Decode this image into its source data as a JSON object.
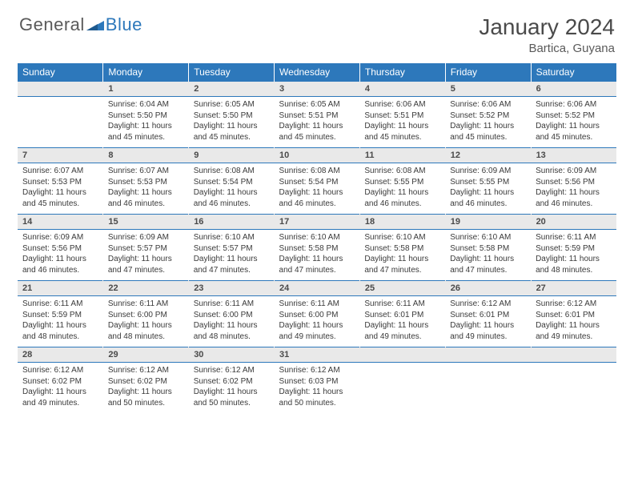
{
  "brand": {
    "general": "General",
    "blue": "Blue"
  },
  "title": "January 2024",
  "location": "Bartica, Guyana",
  "colors": {
    "header_bg": "#2d78bb",
    "header_text": "#ffffff",
    "date_bg": "#e9e9e9",
    "cell_text": "#3a3a3a",
    "title_text": "#4a4a4a",
    "logo_gray": "#5a5a5a",
    "logo_blue": "#2d78bb"
  },
  "typography": {
    "title_fontsize": 28,
    "location_fontsize": 15,
    "header_fontsize": 12,
    "date_fontsize": 11,
    "cell_fontsize": 10
  },
  "day_names": [
    "Sunday",
    "Monday",
    "Tuesday",
    "Wednesday",
    "Thursday",
    "Friday",
    "Saturday"
  ],
  "weeks": [
    {
      "dates": [
        "",
        "1",
        "2",
        "3",
        "4",
        "5",
        "6"
      ],
      "cells": [
        null,
        {
          "sunrise": "Sunrise: 6:04 AM",
          "sunset": "Sunset: 5:50 PM",
          "day1": "Daylight: 11 hours",
          "day2": "and 45 minutes."
        },
        {
          "sunrise": "Sunrise: 6:05 AM",
          "sunset": "Sunset: 5:50 PM",
          "day1": "Daylight: 11 hours",
          "day2": "and 45 minutes."
        },
        {
          "sunrise": "Sunrise: 6:05 AM",
          "sunset": "Sunset: 5:51 PM",
          "day1": "Daylight: 11 hours",
          "day2": "and 45 minutes."
        },
        {
          "sunrise": "Sunrise: 6:06 AM",
          "sunset": "Sunset: 5:51 PM",
          "day1": "Daylight: 11 hours",
          "day2": "and 45 minutes."
        },
        {
          "sunrise": "Sunrise: 6:06 AM",
          "sunset": "Sunset: 5:52 PM",
          "day1": "Daylight: 11 hours",
          "day2": "and 45 minutes."
        },
        {
          "sunrise": "Sunrise: 6:06 AM",
          "sunset": "Sunset: 5:52 PM",
          "day1": "Daylight: 11 hours",
          "day2": "and 45 minutes."
        }
      ]
    },
    {
      "dates": [
        "7",
        "8",
        "9",
        "10",
        "11",
        "12",
        "13"
      ],
      "cells": [
        {
          "sunrise": "Sunrise: 6:07 AM",
          "sunset": "Sunset: 5:53 PM",
          "day1": "Daylight: 11 hours",
          "day2": "and 45 minutes."
        },
        {
          "sunrise": "Sunrise: 6:07 AM",
          "sunset": "Sunset: 5:53 PM",
          "day1": "Daylight: 11 hours",
          "day2": "and 46 minutes."
        },
        {
          "sunrise": "Sunrise: 6:08 AM",
          "sunset": "Sunset: 5:54 PM",
          "day1": "Daylight: 11 hours",
          "day2": "and 46 minutes."
        },
        {
          "sunrise": "Sunrise: 6:08 AM",
          "sunset": "Sunset: 5:54 PM",
          "day1": "Daylight: 11 hours",
          "day2": "and 46 minutes."
        },
        {
          "sunrise": "Sunrise: 6:08 AM",
          "sunset": "Sunset: 5:55 PM",
          "day1": "Daylight: 11 hours",
          "day2": "and 46 minutes."
        },
        {
          "sunrise": "Sunrise: 6:09 AM",
          "sunset": "Sunset: 5:55 PM",
          "day1": "Daylight: 11 hours",
          "day2": "and 46 minutes."
        },
        {
          "sunrise": "Sunrise: 6:09 AM",
          "sunset": "Sunset: 5:56 PM",
          "day1": "Daylight: 11 hours",
          "day2": "and 46 minutes."
        }
      ]
    },
    {
      "dates": [
        "14",
        "15",
        "16",
        "17",
        "18",
        "19",
        "20"
      ],
      "cells": [
        {
          "sunrise": "Sunrise: 6:09 AM",
          "sunset": "Sunset: 5:56 PM",
          "day1": "Daylight: 11 hours",
          "day2": "and 46 minutes."
        },
        {
          "sunrise": "Sunrise: 6:09 AM",
          "sunset": "Sunset: 5:57 PM",
          "day1": "Daylight: 11 hours",
          "day2": "and 47 minutes."
        },
        {
          "sunrise": "Sunrise: 6:10 AM",
          "sunset": "Sunset: 5:57 PM",
          "day1": "Daylight: 11 hours",
          "day2": "and 47 minutes."
        },
        {
          "sunrise": "Sunrise: 6:10 AM",
          "sunset": "Sunset: 5:58 PM",
          "day1": "Daylight: 11 hours",
          "day2": "and 47 minutes."
        },
        {
          "sunrise": "Sunrise: 6:10 AM",
          "sunset": "Sunset: 5:58 PM",
          "day1": "Daylight: 11 hours",
          "day2": "and 47 minutes."
        },
        {
          "sunrise": "Sunrise: 6:10 AM",
          "sunset": "Sunset: 5:58 PM",
          "day1": "Daylight: 11 hours",
          "day2": "and 47 minutes."
        },
        {
          "sunrise": "Sunrise: 6:11 AM",
          "sunset": "Sunset: 5:59 PM",
          "day1": "Daylight: 11 hours",
          "day2": "and 48 minutes."
        }
      ]
    },
    {
      "dates": [
        "21",
        "22",
        "23",
        "24",
        "25",
        "26",
        "27"
      ],
      "cells": [
        {
          "sunrise": "Sunrise: 6:11 AM",
          "sunset": "Sunset: 5:59 PM",
          "day1": "Daylight: 11 hours",
          "day2": "and 48 minutes."
        },
        {
          "sunrise": "Sunrise: 6:11 AM",
          "sunset": "Sunset: 6:00 PM",
          "day1": "Daylight: 11 hours",
          "day2": "and 48 minutes."
        },
        {
          "sunrise": "Sunrise: 6:11 AM",
          "sunset": "Sunset: 6:00 PM",
          "day1": "Daylight: 11 hours",
          "day2": "and 48 minutes."
        },
        {
          "sunrise": "Sunrise: 6:11 AM",
          "sunset": "Sunset: 6:00 PM",
          "day1": "Daylight: 11 hours",
          "day2": "and 49 minutes."
        },
        {
          "sunrise": "Sunrise: 6:11 AM",
          "sunset": "Sunset: 6:01 PM",
          "day1": "Daylight: 11 hours",
          "day2": "and 49 minutes."
        },
        {
          "sunrise": "Sunrise: 6:12 AM",
          "sunset": "Sunset: 6:01 PM",
          "day1": "Daylight: 11 hours",
          "day2": "and 49 minutes."
        },
        {
          "sunrise": "Sunrise: 6:12 AM",
          "sunset": "Sunset: 6:01 PM",
          "day1": "Daylight: 11 hours",
          "day2": "and 49 minutes."
        }
      ]
    },
    {
      "dates": [
        "28",
        "29",
        "30",
        "31",
        "",
        "",
        ""
      ],
      "cells": [
        {
          "sunrise": "Sunrise: 6:12 AM",
          "sunset": "Sunset: 6:02 PM",
          "day1": "Daylight: 11 hours",
          "day2": "and 49 minutes."
        },
        {
          "sunrise": "Sunrise: 6:12 AM",
          "sunset": "Sunset: 6:02 PM",
          "day1": "Daylight: 11 hours",
          "day2": "and 50 minutes."
        },
        {
          "sunrise": "Sunrise: 6:12 AM",
          "sunset": "Sunset: 6:02 PM",
          "day1": "Daylight: 11 hours",
          "day2": "and 50 minutes."
        },
        {
          "sunrise": "Sunrise: 6:12 AM",
          "sunset": "Sunset: 6:03 PM",
          "day1": "Daylight: 11 hours",
          "day2": "and 50 minutes."
        },
        null,
        null,
        null
      ]
    }
  ]
}
